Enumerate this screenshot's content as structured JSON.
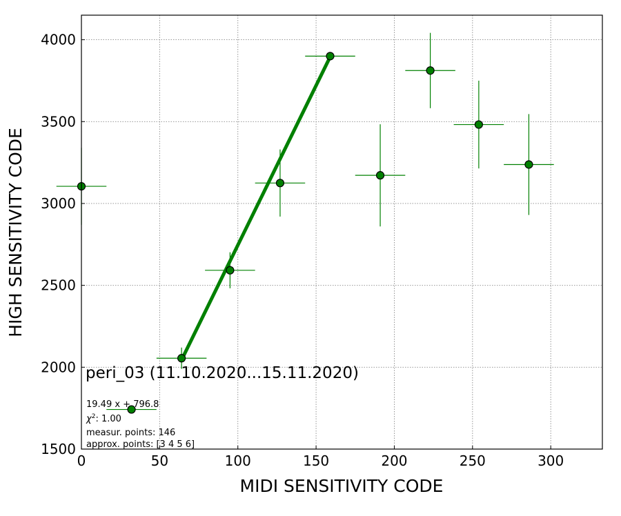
{
  "chart_data": {
    "type": "scatter",
    "xlabel": "MIDI SENSITIVITY CODE",
    "ylabel": "HIGH SENSITIVITY CODE",
    "xlim": [
      0,
      333
    ],
    "ylim": [
      1500,
      4150
    ],
    "xticks": [
      0,
      50,
      100,
      150,
      200,
      250,
      300
    ],
    "yticks": [
      1500,
      2000,
      2500,
      3000,
      3500,
      4000
    ],
    "grid": true,
    "colors": {
      "series": "#008000",
      "marker_edge": "#000000",
      "grid": "#888888"
    },
    "points": [
      {
        "x": 0,
        "y": 3105,
        "xerr": 16,
        "yerr": 235
      },
      {
        "x": 32,
        "y": 1742,
        "xerr": 16,
        "yerr": 10
      },
      {
        "x": 64,
        "y": 2055,
        "xerr": 16,
        "yerr": 65
      },
      {
        "x": 95,
        "y": 2592,
        "xerr": 16,
        "yerr": 110
      },
      {
        "x": 127,
        "y": 3125,
        "xerr": 16,
        "yerr": 205
      },
      {
        "x": 159,
        "y": 3900,
        "xerr": 16,
        "yerr": 0
      },
      {
        "x": 191,
        "y": 3172,
        "xerr": 16,
        "yerr": 312
      },
      {
        "x": 223,
        "y": 3812,
        "xerr": 16,
        "yerr": 230
      },
      {
        "x": 254,
        "y": 3482,
        "xerr": 16,
        "yerr": 268
      },
      {
        "x": 286,
        "y": 3238,
        "xerr": 16,
        "yerr": 308
      }
    ],
    "fit": {
      "slope": 19.49,
      "intercept": 796.8,
      "x_range": [
        64,
        159
      ]
    },
    "annotations": {
      "title": "peri_03 (11.10.2020...15.11.2020)",
      "fit_text": "19.49 x + 796.8",
      "chi2_prefix": "χ",
      "chi2_sup": "2",
      "chi2_value": ": 1.00",
      "measur_points": "measur. points: 146",
      "approx_points": "approx. points: [3 4 5 6]"
    }
  }
}
